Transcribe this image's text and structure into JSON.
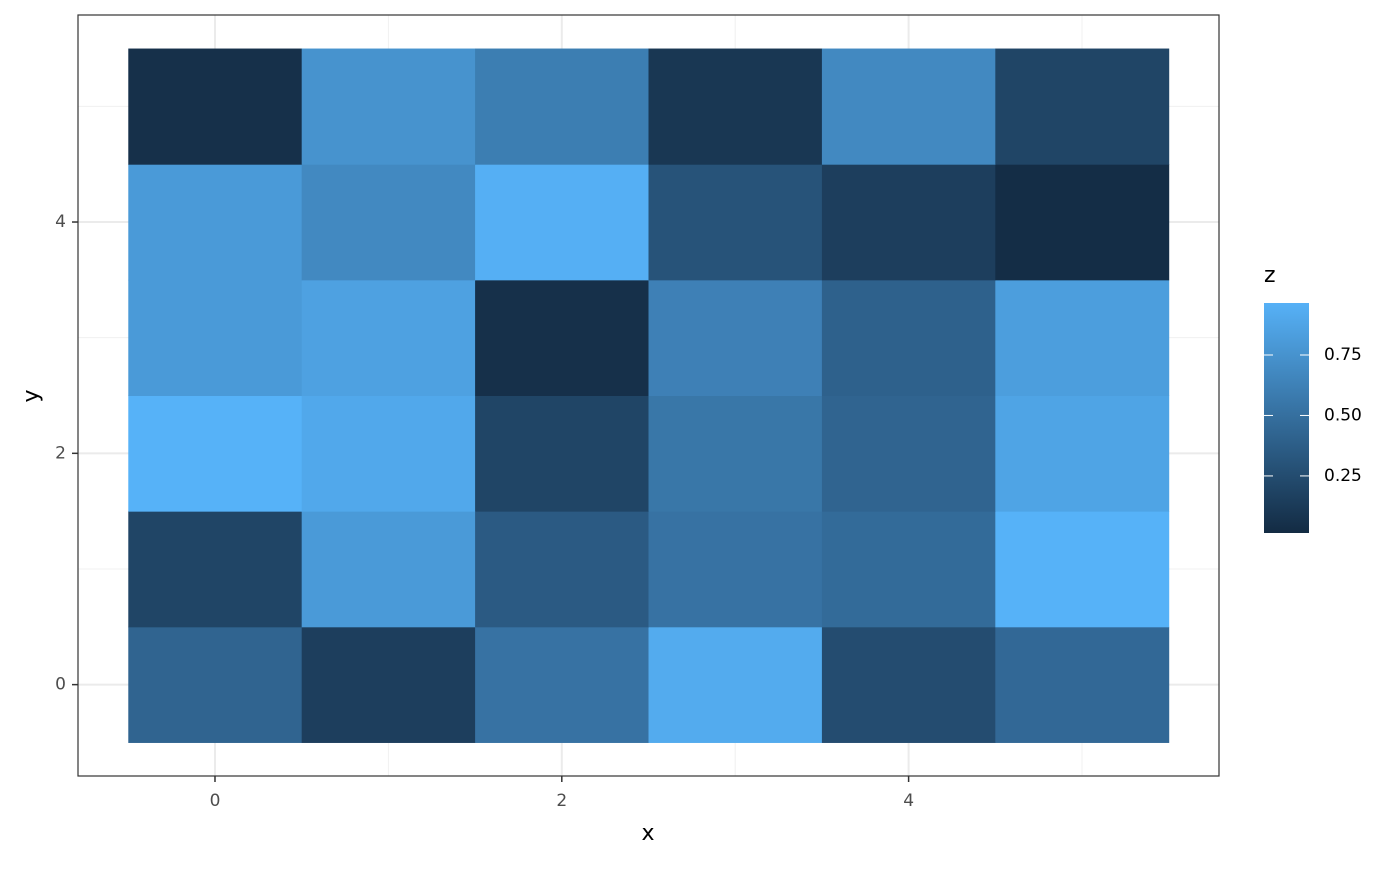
{
  "chart_data": {
    "type": "heatmap",
    "x_label": "x",
    "y_label": "y",
    "legend_title": "z",
    "x": [
      0,
      1,
      2,
      3,
      4,
      5
    ],
    "y": [
      0,
      1,
      2,
      3,
      4,
      5
    ],
    "z": [
      [
        0.42,
        0.15,
        0.52,
        0.92,
        0.25,
        0.45
      ],
      [
        0.2,
        0.8,
        0.35,
        0.52,
        0.47,
        0.97
      ],
      [
        0.97,
        0.9,
        0.2,
        0.55,
        0.42,
        0.87
      ],
      [
        0.8,
        0.85,
        0.05,
        0.62,
        0.4,
        0.83
      ],
      [
        0.8,
        0.68,
        0.95,
        0.3,
        0.15,
        0.03
      ],
      [
        0.05,
        0.75,
        0.6,
        0.1,
        0.68,
        0.2
      ]
    ],
    "xlim": [
      -0.79,
      5.79
    ],
    "ylim": [
      -0.79,
      5.79
    ],
    "xticks": [
      0,
      2,
      4
    ],
    "yticks": [
      0,
      2,
      4
    ],
    "xminor": [
      1,
      3,
      5
    ],
    "yminor": [
      1,
      3,
      5
    ],
    "grid": true,
    "zlim": [
      0.014,
      0.965
    ],
    "zticks": [
      {
        "value": 0.25,
        "label": "0.25"
      },
      {
        "value": 0.5,
        "label": "0.50"
      },
      {
        "value": 0.75,
        "label": "0.75"
      }
    ],
    "low_color": "#132B43",
    "high_color": "#56B1F7",
    "legend_position": "right"
  }
}
